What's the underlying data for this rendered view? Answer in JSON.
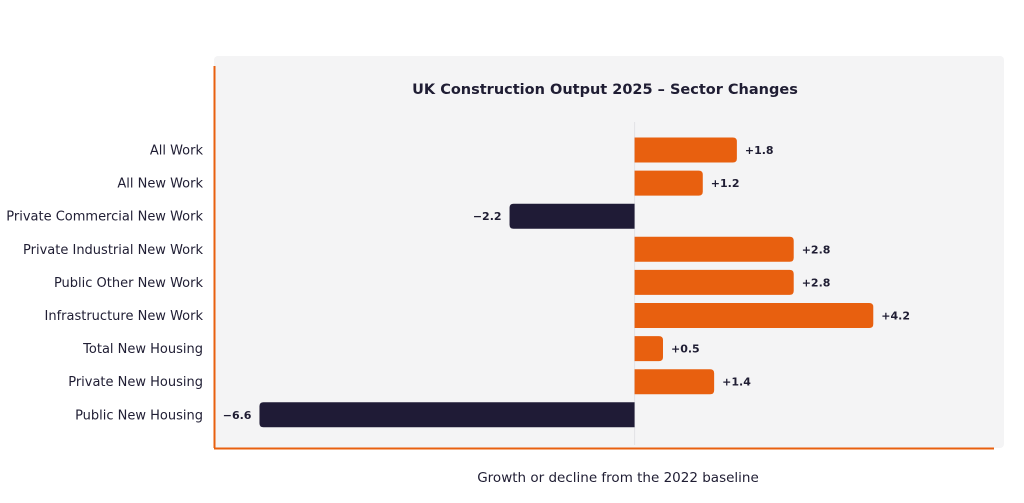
{
  "chart_data": {
    "type": "bar",
    "orientation": "horizontal",
    "title": "UK Construction Output 2025 – Sector Changes",
    "xlabel": "Growth or decline from the 2022 baseline",
    "ylabel": "",
    "xlim": [
      -7.4,
      6.5
    ],
    "categories": [
      "All Work",
      "All New Work",
      "Private Commercial New Work",
      "Private Industrial New Work",
      "Public Other New Work",
      "Infrastructure New Work",
      "Total New Housing",
      "Private New Housing",
      "Public New Housing"
    ],
    "values": [
      1.8,
      1.2,
      -2.2,
      2.8,
      2.8,
      4.2,
      0.5,
      1.4,
      -6.6
    ],
    "value_labels": [
      "+1.8",
      "+1.2",
      "−2.2",
      "+2.8",
      "+2.8",
      "+4.2",
      "+0.5",
      "+1.4",
      "−6.6"
    ],
    "colors": {
      "positive": "#e8600f",
      "negative": "#1f1b36",
      "axis": "#e8600f",
      "panel": "#f4f4f5"
    },
    "grid": false,
    "legend": "none"
  }
}
